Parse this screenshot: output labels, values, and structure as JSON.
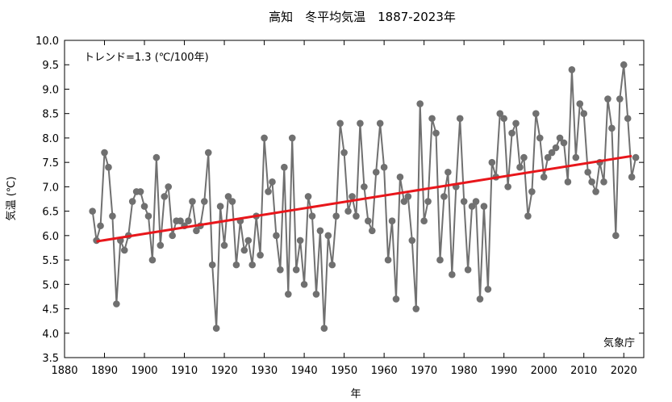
{
  "chart_data": {
    "type": "line",
    "title": "高知　冬平均気温　1887-2023年",
    "xlabel": "年",
    "ylabel": "気温 (℃)",
    "trend_label": "トレンド=1.3 (℃/100年)",
    "credit": "気象庁",
    "xlim": [
      1880,
      2025
    ],
    "ylim": [
      3.5,
      10.0
    ],
    "x_ticks": [
      1880,
      1890,
      1900,
      1910,
      1920,
      1930,
      1940,
      1950,
      1960,
      1970,
      1980,
      1990,
      2000,
      2010,
      2020
    ],
    "y_ticks": [
      3.5,
      4.0,
      4.5,
      5.0,
      5.5,
      6.0,
      6.5,
      7.0,
      7.5,
      8.0,
      8.5,
      9.0,
      9.5,
      10.0
    ],
    "grid": false,
    "colors": {
      "series": "#707070",
      "trend": "#e8161b"
    },
    "series": [
      {
        "x": [
          1887,
          1888,
          1889,
          1890,
          1891,
          1892,
          1893,
          1894,
          1895,
          1896,
          1897,
          1898,
          1899,
          1900,
          1901,
          1902,
          1903,
          1904,
          1905,
          1906,
          1907,
          1908,
          1909,
          1910,
          1911,
          1912,
          1913,
          1914,
          1915,
          1916,
          1917,
          1918,
          1919,
          1920,
          1921,
          1922,
          1923,
          1924,
          1925,
          1926,
          1927,
          1928,
          1929,
          1930,
          1931,
          1932,
          1933,
          1934,
          1935,
          1936,
          1937,
          1938,
          1939,
          1940,
          1941,
          1942,
          1943,
          1944,
          1945,
          1946,
          1947,
          1948,
          1949,
          1950,
          1951,
          1952,
          1953,
          1954,
          1955,
          1956,
          1957,
          1958,
          1959,
          1960,
          1961,
          1962,
          1963,
          1964,
          1965,
          1966,
          1967,
          1968,
          1969,
          1970,
          1971,
          1972,
          1973,
          1974,
          1975,
          1976,
          1977,
          1978,
          1979,
          1980,
          1981,
          1982,
          1983,
          1984,
          1985,
          1986,
          1987,
          1988,
          1989,
          1990,
          1991,
          1992,
          1993,
          1994,
          1995,
          1996,
          1997,
          1998,
          1999,
          2000,
          2001,
          2002,
          2003,
          2004,
          2005,
          2006,
          2007,
          2008,
          2009,
          2010,
          2011,
          2012,
          2013,
          2014,
          2015,
          2016,
          2017,
          2018,
          2019,
          2020,
          2021,
          2022,
          2023
        ],
        "values": [
          6.5,
          5.9,
          6.2,
          7.7,
          7.4,
          6.4,
          4.6,
          5.9,
          5.7,
          6.0,
          6.7,
          6.9,
          6.9,
          6.6,
          6.4,
          5.5,
          7.6,
          5.8,
          6.8,
          7.0,
          6.0,
          6.3,
          6.3,
          6.2,
          6.3,
          6.7,
          6.1,
          6.2,
          6.7,
          7.7,
          5.4,
          4.1,
          6.6,
          5.8,
          6.8,
          6.7,
          5.4,
          6.3,
          5.7,
          5.9,
          5.4,
          6.4,
          5.6,
          8.0,
          6.9,
          7.1,
          6.0,
          5.3,
          7.4,
          4.8,
          8.0,
          5.3,
          5.9,
          5.0,
          6.8,
          6.4,
          4.8,
          6.1,
          4.1,
          6.0,
          5.4,
          6.4,
          8.3,
          7.7,
          6.5,
          6.8,
          6.4,
          8.3,
          7.0,
          6.3,
          6.1,
          7.3,
          8.3,
          7.4,
          5.5,
          6.3,
          4.7,
          7.2,
          6.7,
          6.8,
          5.9,
          4.5,
          8.7,
          6.3,
          6.7,
          8.4,
          8.1,
          5.5,
          6.8,
          7.3,
          5.2,
          7.0,
          8.4,
          6.7,
          5.3,
          6.6,
          6.7,
          4.7,
          6.6,
          4.9,
          7.5,
          7.2,
          8.5,
          8.4,
          7.0,
          8.1,
          8.3,
          7.4,
          7.6,
          6.4,
          6.9,
          8.5,
          8.0,
          7.2,
          7.6,
          7.7,
          7.8,
          8.0,
          7.9,
          7.1,
          9.4,
          7.6,
          8.7,
          8.5,
          7.3,
          7.1,
          6.9,
          7.5,
          7.1,
          8.8,
          8.2,
          6.0,
          8.8,
          9.5,
          8.4,
          7.2,
          7.6
        ]
      }
    ],
    "trend": {
      "x": [
        1888,
        2022
      ],
      "y": [
        5.88,
        7.63
      ]
    }
  }
}
